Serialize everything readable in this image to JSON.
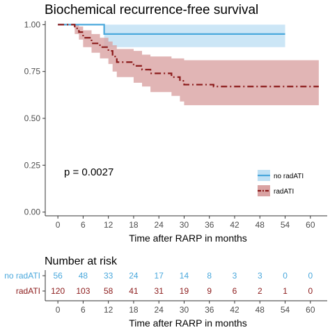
{
  "chart_data": [
    {
      "type": "line",
      "title": "Biochemical recurrence-free survival",
      "xlabel": "Time after RARP in months",
      "ylabel": "",
      "xlim": [
        -3,
        64
      ],
      "ylim": [
        -0.02,
        1.02
      ],
      "x_ticks": [
        "0",
        "6",
        "12",
        "18",
        "24",
        "30",
        "36",
        "42",
        "48",
        "54",
        "60"
      ],
      "x_tick_values": [
        0,
        6,
        12,
        18,
        24,
        30,
        36,
        42,
        48,
        54,
        60
      ],
      "y_ticks": [
        "0.00",
        "0.25",
        "0.50",
        "0.75",
        "1.00"
      ],
      "y_tick_values": [
        0,
        0.25,
        0.5,
        0.75,
        1.0
      ],
      "pvalue": "p = 0.0027",
      "legend_position": "bottom-right",
      "series": [
        {
          "name": "no radATI",
          "color": "#4aa8dc",
          "band_color": "#bfe0f4",
          "line_style": "solid",
          "steps": [
            [
              0,
              1.0
            ],
            [
              11,
              1.0
            ],
            [
              11,
              0.95
            ],
            [
              54,
              0.95
            ]
          ],
          "lower": [
            [
              0,
              1.0
            ],
            [
              11,
              1.0
            ],
            [
              11,
              0.88
            ],
            [
              54,
              0.88
            ]
          ],
          "upper": [
            [
              0,
              1.0
            ],
            [
              54,
              1.0
            ]
          ]
        },
        {
          "name": "radATI",
          "color": "#8b1a1a",
          "band_color": "#d9a3a3",
          "line_style": "dashdot",
          "steps": [
            [
              0,
              1.0
            ],
            [
              4,
              1.0
            ],
            [
              4,
              0.98
            ],
            [
              5,
              0.98
            ],
            [
              5,
              0.96
            ],
            [
              6,
              0.96
            ],
            [
              6,
              0.93
            ],
            [
              8,
              0.93
            ],
            [
              8,
              0.9
            ],
            [
              10,
              0.9
            ],
            [
              10,
              0.88
            ],
            [
              12,
              0.88
            ],
            [
              12,
              0.86
            ],
            [
              13,
              0.86
            ],
            [
              13,
              0.83
            ],
            [
              14,
              0.83
            ],
            [
              14,
              0.8
            ],
            [
              18,
              0.8
            ],
            [
              18,
              0.78
            ],
            [
              20,
              0.78
            ],
            [
              20,
              0.76
            ],
            [
              22,
              0.76
            ],
            [
              22,
              0.74
            ],
            [
              27,
              0.74
            ],
            [
              27,
              0.72
            ],
            [
              29,
              0.72
            ],
            [
              29,
              0.7
            ],
            [
              30,
              0.7
            ],
            [
              30,
              0.68
            ],
            [
              37,
              0.68
            ],
            [
              37,
              0.67
            ],
            [
              62,
              0.67
            ]
          ],
          "lower": [
            [
              0,
              1.0
            ],
            [
              4,
              1.0
            ],
            [
              4,
              0.95
            ],
            [
              5,
              0.95
            ],
            [
              5,
              0.92
            ],
            [
              6,
              0.92
            ],
            [
              6,
              0.88
            ],
            [
              8,
              0.88
            ],
            [
              8,
              0.85
            ],
            [
              10,
              0.85
            ],
            [
              10,
              0.82
            ],
            [
              12,
              0.82
            ],
            [
              12,
              0.79
            ],
            [
              13,
              0.79
            ],
            [
              13,
              0.75
            ],
            [
              14,
              0.75
            ],
            [
              14,
              0.72
            ],
            [
              18,
              0.72
            ],
            [
              18,
              0.69
            ],
            [
              20,
              0.69
            ],
            [
              20,
              0.67
            ],
            [
              22,
              0.67
            ],
            [
              22,
              0.64
            ],
            [
              27,
              0.64
            ],
            [
              27,
              0.62
            ],
            [
              29,
              0.62
            ],
            [
              29,
              0.59
            ],
            [
              30,
              0.59
            ],
            [
              30,
              0.57
            ],
            [
              62,
              0.57
            ]
          ],
          "upper": [
            [
              0,
              1.0
            ],
            [
              4,
              1.0
            ],
            [
              4,
              1.0
            ],
            [
              5,
              1.0
            ],
            [
              5,
              0.99
            ],
            [
              6,
              0.99
            ],
            [
              6,
              0.97
            ],
            [
              8,
              0.97
            ],
            [
              8,
              0.95
            ],
            [
              10,
              0.95
            ],
            [
              10,
              0.93
            ],
            [
              12,
              0.93
            ],
            [
              12,
              0.91
            ],
            [
              13,
              0.91
            ],
            [
              13,
              0.89
            ],
            [
              14,
              0.89
            ],
            [
              14,
              0.87
            ],
            [
              18,
              0.87
            ],
            [
              18,
              0.86
            ],
            [
              20,
              0.86
            ],
            [
              20,
              0.84
            ],
            [
              22,
              0.84
            ],
            [
              22,
              0.83
            ],
            [
              27,
              0.83
            ],
            [
              27,
              0.82
            ],
            [
              30,
              0.82
            ],
            [
              30,
              0.81
            ],
            [
              62,
              0.81
            ]
          ]
        }
      ]
    },
    {
      "type": "table",
      "title": "Number at risk",
      "xlabel": "Time after RARP in months",
      "x_tick_values": [
        0,
        6,
        12,
        18,
        24,
        30,
        36,
        42,
        48,
        54,
        60
      ],
      "x_ticks": [
        "0",
        "6",
        "12",
        "18",
        "24",
        "30",
        "36",
        "42",
        "48",
        "54",
        "60"
      ],
      "rows": [
        {
          "name": "no radATI",
          "color": "#4aa8dc",
          "values": [
            "56",
            "48",
            "33",
            "24",
            "17",
            "14",
            "8",
            "3",
            "3",
            "0",
            "0"
          ]
        },
        {
          "name": "radATI",
          "color": "#8b1a1a",
          "values": [
            "120",
            "103",
            "58",
            "41",
            "31",
            "19",
            "9",
            "6",
            "2",
            "1",
            "0"
          ]
        }
      ]
    }
  ]
}
